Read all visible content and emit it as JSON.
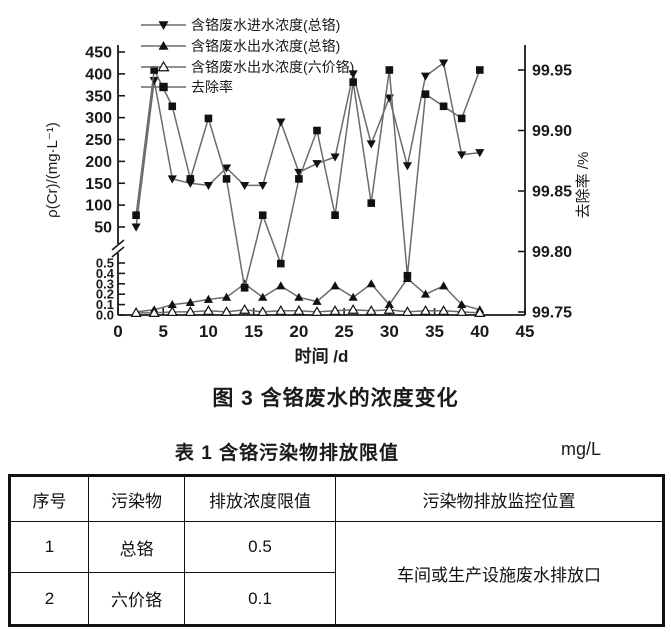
{
  "figure": {
    "caption": "图 3  含铬废水的浓度变化"
  },
  "chart_data": {
    "type": "line",
    "title": "图 3 含铬废水的浓度变化",
    "xlabel": "时间 /d",
    "ylabel_left": "ρ(Cr)/(mg·L⁻¹)",
    "ylabel_right": "去除率 /%",
    "x_ticks": [
      0,
      5,
      10,
      15,
      20,
      25,
      30,
      35,
      40,
      45
    ],
    "y_left_upper_ticks": [
      450,
      400,
      350,
      300,
      250,
      200,
      150,
      100,
      50
    ],
    "y_left_lower_ticks": [
      "0.5",
      "0.4",
      "0.3",
      "0.2",
      "0.1",
      "0.0"
    ],
    "y_right_ticks": [
      "99.95",
      "99.90",
      "99.85",
      "99.80",
      "99.75"
    ],
    "axis_break": true,
    "ylim_left_upper": [
      50,
      450
    ],
    "ylim_left_lower": [
      0,
      0.5
    ],
    "ylim_right": [
      99.75,
      99.95
    ],
    "x": [
      2,
      4,
      6,
      8,
      10,
      12,
      14,
      16,
      18,
      20,
      22,
      24,
      26,
      28,
      30,
      32,
      34,
      36,
      38,
      40
    ],
    "series": [
      {
        "name": "含铬废水进水浓度(总铬)",
        "axis": "left-upper",
        "marker": "triangle-down-filled",
        "values": [
          50,
          385,
          160,
          150,
          145,
          185,
          145,
          145,
          290,
          175,
          195,
          210,
          400,
          240,
          345,
          190,
          395,
          425,
          215,
          220
        ]
      },
      {
        "name": "含铬废水出水浓度(总铬)",
        "axis": "left-lower",
        "marker": "triangle-up-filled",
        "values": [
          0.03,
          0.05,
          0.1,
          0.12,
          0.15,
          0.17,
          0.3,
          0.17,
          0.28,
          0.17,
          0.13,
          0.28,
          0.17,
          0.3,
          0.1,
          0.35,
          0.2,
          0.28,
          0.1,
          0.05
        ]
      },
      {
        "name": "含铬废水出水浓度(六价铬)",
        "axis": "left-lower",
        "marker": "triangle-up-open",
        "values": [
          0.02,
          0.02,
          0.03,
          0.03,
          0.04,
          0.03,
          0.05,
          0.03,
          0.04,
          0.04,
          0.03,
          0.04,
          0.05,
          0.04,
          0.05,
          0.03,
          0.04,
          0.04,
          0.03,
          0.02
        ]
      },
      {
        "name": "去除率",
        "axis": "right",
        "marker": "square-filled",
        "values": [
          99.83,
          99.95,
          99.92,
          99.86,
          99.91,
          99.86,
          99.77,
          99.83,
          99.79,
          99.86,
          99.9,
          99.83,
          99.94,
          99.84,
          99.95,
          99.78,
          99.93,
          99.92,
          99.91,
          99.95
        ]
      }
    ],
    "legend_position": "top-left-inside",
    "grid": false,
    "colors": {
      "ink": "#1a1a1a",
      "line": "#6b6b6b",
      "marker": "#111111"
    }
  },
  "table": {
    "title": "表 1  含铬污染物排放限值",
    "unit": "mg/L",
    "headers": [
      "序号",
      "污染物",
      "排放浓度限值",
      "污染物排放监控位置"
    ],
    "rows": [
      {
        "no": "1",
        "pollutant": "总铬",
        "limit": "0.5"
      },
      {
        "no": "2",
        "pollutant": "六价铬",
        "limit": "0.1"
      }
    ],
    "merged_cell": "车间或生产设施废水排放口"
  }
}
